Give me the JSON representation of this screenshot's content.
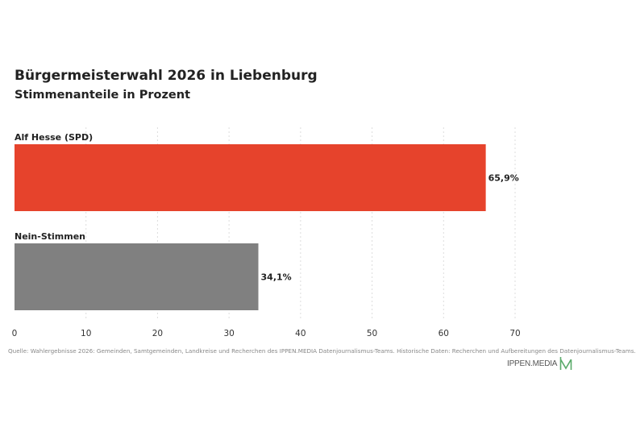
{
  "header": {
    "title": "Bürgermeisterwahl 2026 in Liebenburg",
    "subtitle": "Stimmenanteile in Prozent"
  },
  "chart_data": {
    "type": "bar",
    "orientation": "horizontal",
    "categories": [
      "Alf Hesse (SPD)",
      "Nein-Stimmen"
    ],
    "values": [
      65.9,
      34.1
    ],
    "value_labels": [
      "65,9%",
      "34,1%"
    ],
    "colors": [
      "#e6432c",
      "#808080"
    ],
    "xlim": [
      0,
      70
    ],
    "x_ticks": [
      0,
      10,
      20,
      30,
      40,
      50,
      60,
      70
    ],
    "grid": true,
    "title": "Bürgermeisterwahl 2026 in Liebenburg",
    "subtitle": "Stimmenanteile in Prozent",
    "xlabel": "",
    "ylabel": ""
  },
  "footer": {
    "source": "Quelle: Wahlergebnisse 2026: Gemeinden, Samtgemeinden, Landkreise und Recherchen des IPPEN.MEDIA Datenjournalismus-Teams. Historische Daten: Recherchen und Aufbereitungen des Datenjournalismus-Teams.",
    "brand": "IPPEN.MEDIA",
    "brand_color": "#5aaa6a"
  }
}
